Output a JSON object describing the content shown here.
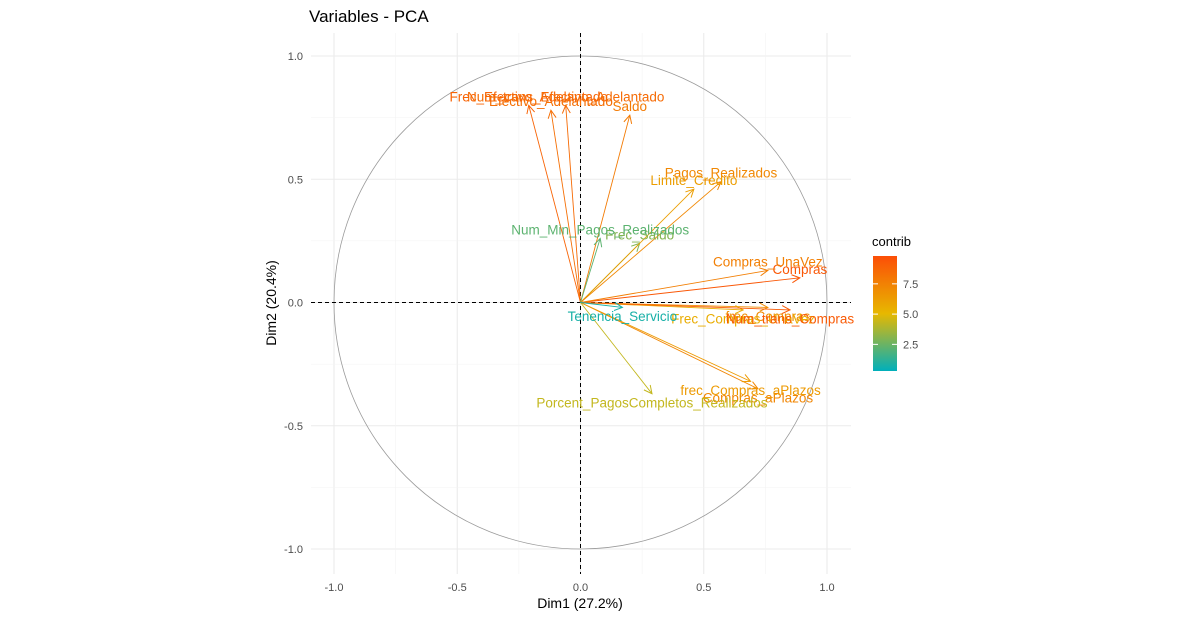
{
  "chart_data": {
    "type": "scatter",
    "subtype": "pca-variable-correlation-circle",
    "title": "Variables - PCA",
    "xlabel": "Dim1 (27.2%)",
    "ylabel": "Dim2 (20.4%)",
    "xlim": [
      -1.1,
      1.1
    ],
    "ylim": [
      -1.1,
      1.1
    ],
    "x_ticks": [
      -1.0,
      -0.5,
      0.0,
      0.5,
      1.0
    ],
    "y_ticks": [
      -1.0,
      -0.5,
      0.0,
      0.5,
      1.0
    ],
    "x_tick_labels": [
      "-1.0",
      "-0.5",
      "0.0",
      "0.5",
      "1.0"
    ],
    "y_tick_labels": [
      "-1.0",
      "-0.5",
      "0.0",
      "0.5",
      "1.0"
    ],
    "grid": true,
    "unit_circle": true,
    "legend": {
      "title": "contrib",
      "placement": "right",
      "range": [
        0.3,
        9.8
      ],
      "ticks": [
        2.5,
        5.0,
        7.5
      ],
      "tick_labels": [
        "2.5",
        "5.0",
        "7.5"
      ],
      "colors": [
        "#00AFBB",
        "#E7B800",
        "#FC4E07"
      ]
    },
    "variables": [
      {
        "name": "Saldo",
        "x": 0.2,
        "y": 0.76,
        "contrib": 7.8
      },
      {
        "name": "Frec_Saldo",
        "x": 0.24,
        "y": 0.24,
        "contrib": 3.0
      },
      {
        "name": "Compras",
        "x": 0.89,
        "y": 0.1,
        "contrib": 9.4
      },
      {
        "name": "Compras_UnaVez",
        "x": 0.76,
        "y": 0.13,
        "contrib": 7.6
      },
      {
        "name": "Compras_aPlazos",
        "x": 0.72,
        "y": -0.35,
        "contrib": 7.3
      },
      {
        "name": "frec_Compras",
        "x": 0.76,
        "y": -0.02,
        "contrib": 7.0
      },
      {
        "name": "Frec_Compras_UnaVez",
        "x": 0.66,
        "y": -0.03,
        "contrib": 5.6
      },
      {
        "name": "frec_Compras_aPlazos",
        "x": 0.69,
        "y": -0.32,
        "contrib": 6.4
      },
      {
        "name": "Efectivo_Adelantado",
        "x": -0.12,
        "y": 0.78,
        "contrib": 8.3
      },
      {
        "name": "Frec_Efectivo_Adelantado",
        "x": -0.21,
        "y": 0.8,
        "contrib": 8.8
      },
      {
        "name": "Num_trans_Efectivo_Adelantado",
        "x": -0.06,
        "y": 0.8,
        "contrib": 8.5
      },
      {
        "name": "Num_trans_Compras",
        "x": 0.85,
        "y": -0.03,
        "contrib": 9.2
      },
      {
        "name": "Limite_Credito",
        "x": 0.46,
        "y": 0.46,
        "contrib": 6.2
      },
      {
        "name": "Pagos_Realizados",
        "x": 0.57,
        "y": 0.49,
        "contrib": 7.2
      },
      {
        "name": "Num_Min_Pagos_Realizados",
        "x": 0.08,
        "y": 0.26,
        "contrib": 2.2
      },
      {
        "name": "Porcent_PagosCompletos_Realizados",
        "x": 0.29,
        "y": -0.37,
        "contrib": 4.3
      },
      {
        "name": "Tenencia_Servicio",
        "x": 0.17,
        "y": -0.02,
        "contrib": 0.8
      }
    ]
  }
}
